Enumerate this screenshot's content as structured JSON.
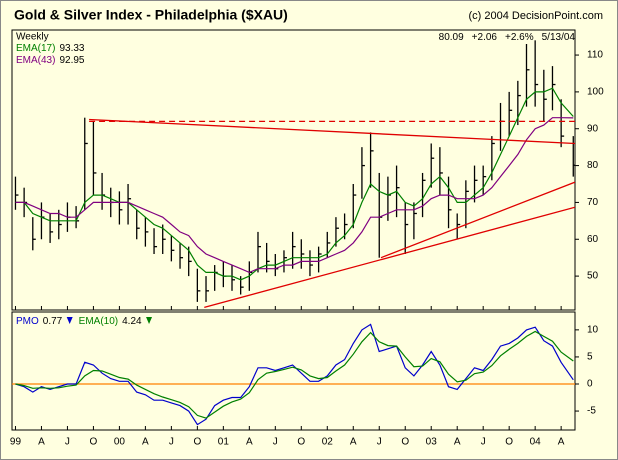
{
  "chart_data": [
    {
      "type": "ohlc",
      "title": "Gold & Silver Index - Philadelphia ($XAU)",
      "subtitle": "(c) 2004 DecisionPoint.com",
      "period": "Weekly",
      "quote": [
        "+2.06",
        "+2.6%",
        "5/13/04"
      ],
      "x": [
        0,
        1,
        2,
        3,
        4,
        5,
        6,
        7,
        8,
        9,
        10,
        11,
        12,
        13,
        14,
        15,
        16,
        17,
        18,
        19,
        20,
        21,
        22,
        23,
        24,
        25,
        26,
        27,
        28,
        29,
        30,
        31,
        32,
        33,
        34,
        35,
        36,
        37,
        38,
        39,
        40,
        41,
        42,
        43,
        44,
        45,
        46,
        47,
        48,
        49,
        50,
        51,
        52,
        53,
        54,
        55,
        56,
        57,
        58,
        59,
        60,
        61,
        62,
        63,
        64.4
      ],
      "xlim": [
        -0.4,
        64.6
      ],
      "high": [
        77,
        74,
        66,
        70,
        67,
        68,
        70,
        69,
        93,
        92,
        78,
        74,
        73,
        75,
        68,
        66,
        63,
        64,
        61,
        59,
        58,
        52,
        50,
        53,
        54,
        53,
        50,
        54,
        62,
        59,
        56,
        57,
        62,
        60,
        57,
        58,
        62,
        66,
        67,
        75,
        85,
        89,
        78,
        77,
        80,
        70,
        70,
        78,
        86,
        85,
        77,
        67,
        76,
        80,
        80,
        88,
        97,
        100,
        103,
        113,
        114,
        106,
        107,
        98,
        88
      ],
      "low": [
        68,
        66,
        57,
        60,
        59,
        60,
        62,
        63,
        68,
        72,
        68,
        66,
        64,
        64,
        60,
        58,
        56,
        56,
        54,
        52,
        50,
        43,
        43,
        46,
        47,
        46,
        45,
        46,
        51,
        51,
        50,
        51,
        52,
        52,
        50,
        51,
        55,
        58,
        60,
        63,
        71,
        74,
        55,
        65,
        66,
        56,
        60,
        66,
        74,
        72,
        63,
        60,
        63,
        70,
        72,
        76,
        84,
        88,
        91,
        96,
        96,
        92,
        95,
        85,
        77
      ],
      "close": [
        72,
        70,
        60,
        66,
        62,
        64,
        66,
        65,
        86,
        78,
        72,
        70,
        68,
        71,
        63,
        62,
        58,
        60,
        57,
        55,
        54,
        46,
        46,
        51,
        50,
        49,
        47,
        51,
        58,
        54,
        52,
        55,
        58,
        56,
        53,
        56,
        59,
        63,
        64,
        72,
        80,
        84,
        66,
        72,
        74,
        64,
        67,
        76,
        82,
        78,
        68,
        64,
        73,
        76,
        77,
        86,
        92,
        95,
        99,
        106,
        102,
        98,
        102,
        88,
        80.09
      ],
      "bar_color": "#000000",
      "series": [
        {
          "name": "EMA(17)",
          "color": "#008000",
          "values": [
            70,
            70,
            67,
            66,
            65,
            65,
            65,
            65,
            70,
            72,
            72,
            71,
            70,
            70,
            68,
            66,
            64,
            63,
            61,
            59,
            57,
            53,
            51,
            51,
            50,
            50,
            49,
            50,
            52,
            53,
            53,
            54,
            55,
            55,
            55,
            55,
            56,
            59,
            61,
            64,
            70,
            75,
            73,
            72,
            73,
            70,
            69,
            71,
            75,
            77,
            74,
            70,
            70,
            72,
            74,
            78,
            83,
            88,
            93,
            98,
            100,
            100,
            101,
            97,
            93.33
          ]
        },
        {
          "name": "EMA(43)",
          "color": "#800080",
          "values": [
            70,
            70,
            69,
            68,
            67,
            67,
            66,
            66,
            68,
            70,
            70,
            70,
            70,
            70,
            69,
            68,
            67,
            66,
            64,
            62,
            61,
            58,
            56,
            55,
            54,
            53,
            52,
            51,
            52,
            52,
            52,
            53,
            53,
            54,
            54,
            54,
            55,
            56,
            57,
            59,
            62,
            66,
            66,
            67,
            68,
            68,
            68,
            69,
            71,
            72,
            72,
            71,
            71,
            71,
            72,
            74,
            77,
            80,
            83,
            87,
            90,
            91,
            93,
            93,
            92.95
          ]
        }
      ],
      "trendlines": [
        {
          "x": [
            8.5,
            64.6
          ],
          "y": [
            92,
            92
          ],
          "dashed": true
        },
        {
          "x": [
            8.5,
            64.6
          ],
          "y": [
            92.5,
            86
          ],
          "dashed": false
        },
        {
          "x": [
            21.8,
            64.6
          ],
          "y": [
            41.5,
            68.7
          ],
          "dashed": false
        },
        {
          "x": [
            42.2,
            64.6
          ],
          "y": [
            55,
            75.5
          ],
          "dashed": false
        }
      ],
      "trendline_color": "#e00000",
      "ylim": [
        40.8,
        116.8
      ],
      "yticks": [
        50,
        60,
        70,
        80,
        90,
        100,
        110
      ]
    },
    {
      "type": "line",
      "series": [
        {
          "name": "PMO",
          "color": "#0000cc",
          "values": [
            0,
            -0.5,
            -1.5,
            -0.5,
            -1,
            -0.5,
            0,
            0,
            4,
            3.5,
            2,
            1,
            0.5,
            0.5,
            -1.5,
            -2,
            -3,
            -3,
            -3.5,
            -4,
            -5,
            -7.5,
            -6.5,
            -4,
            -3,
            -2.5,
            -2.5,
            -0.5,
            3,
            3,
            2.5,
            3,
            3.5,
            2,
            0.5,
            0.5,
            1.5,
            3.5,
            4.5,
            7.5,
            10,
            11,
            6,
            6.5,
            7,
            3,
            1.5,
            3.5,
            6,
            3.5,
            -0.5,
            -1,
            1,
            3,
            2.5,
            4.5,
            7,
            7.5,
            8.5,
            10,
            10.5,
            8,
            7,
            4,
            0.77
          ]
        },
        {
          "name": "EMA(10)",
          "color": "#008000",
          "values": [
            0,
            -0.3,
            -0.8,
            -0.7,
            -0.8,
            -0.7,
            -0.4,
            -0.2,
            1.5,
            2.5,
            2.4,
            1.8,
            1.2,
            0.9,
            -0.2,
            -1,
            -1.8,
            -2.4,
            -2.9,
            -3.4,
            -4.2,
            -5.8,
            -6.3,
            -5.2,
            -4.1,
            -3.3,
            -2.8,
            -1.6,
            0.8,
            2,
            2.3,
            2.7,
            3.1,
            2.6,
            1.5,
            1,
            1.2,
            2.4,
            3.5,
            5.5,
            7.8,
            9.5,
            7.8,
            7.1,
            7,
            5,
            3.2,
            3.3,
            4.7,
            4.1,
            1.8,
            0.4,
            0.7,
            1.9,
            2.2,
            3.4,
            5.2,
            6.4,
            7.5,
            8.8,
            9.7,
            8.8,
            7.9,
            5.9,
            4.24
          ]
        }
      ],
      "reference_line": 0,
      "reference_color": "#ff8000",
      "ylim": [
        -8.5,
        13.3
      ],
      "yticks": [
        -5,
        0,
        5,
        10
      ],
      "xticks": [
        {
          "value": 0,
          "label": "99"
        },
        {
          "value": 3,
          "label": "A"
        },
        {
          "value": 6,
          "label": "J"
        },
        {
          "value": 9,
          "label": "O"
        },
        {
          "value": 12,
          "label": "00"
        },
        {
          "value": 15,
          "label": "A"
        },
        {
          "value": 18,
          "label": "J"
        },
        {
          "value": 21,
          "label": "O"
        },
        {
          "value": 24,
          "label": "01"
        },
        {
          "value": 27,
          "label": "A"
        },
        {
          "value": 30,
          "label": "J"
        },
        {
          "value": 33,
          "label": "O"
        },
        {
          "value": 36,
          "label": "02"
        },
        {
          "value": 39,
          "label": "A"
        },
        {
          "value": 42,
          "label": "J"
        },
        {
          "value": 45,
          "label": "O"
        },
        {
          "value": 48,
          "label": "03"
        },
        {
          "value": 51,
          "label": "A"
        },
        {
          "value": 54,
          "label": "J"
        },
        {
          "value": 57,
          "label": "O"
        },
        {
          "value": 60,
          "label": "04"
        },
        {
          "value": 63,
          "label": "A"
        }
      ]
    }
  ]
}
